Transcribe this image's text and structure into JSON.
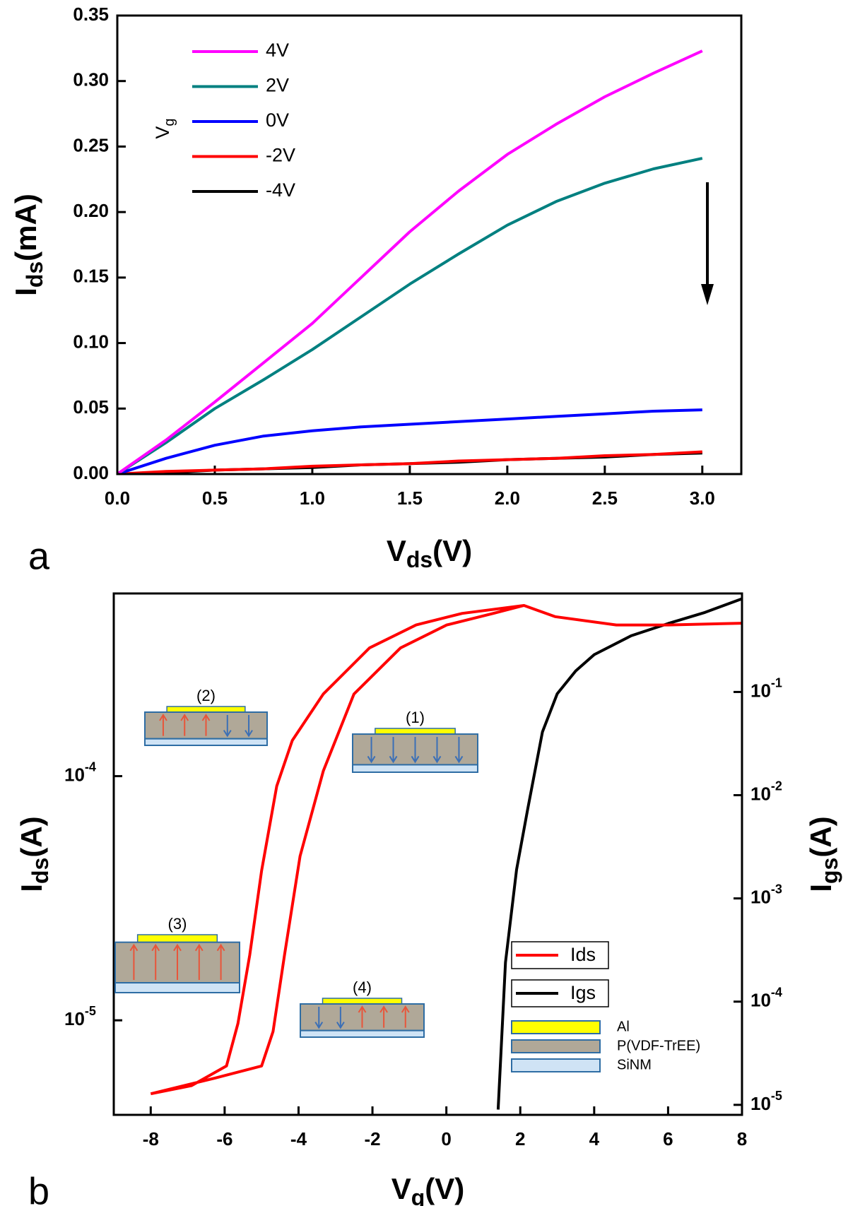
{
  "chart_data": [
    {
      "type": "line",
      "panel": "a",
      "x_label": [
        "V",
        "ds",
        "(V)"
      ],
      "y_label": [
        "I",
        "ds",
        "(mA)"
      ],
      "legend_title": [
        "V",
        "g"
      ],
      "x": [
        0,
        0.25,
        0.5,
        0.75,
        1,
        1.25,
        1.5,
        1.75,
        2,
        2.25,
        2.5,
        2.75,
        3
      ],
      "series": [
        {
          "name": "4V",
          "color": "#ff00ff",
          "values": [
            0,
            0.026,
            0.055,
            0.085,
            0.115,
            0.15,
            0.185,
            0.216,
            0.244,
            0.267,
            0.288,
            0.306,
            0.323
          ]
        },
        {
          "name": "2V",
          "color": "#008080",
          "values": [
            0,
            0.024,
            0.05,
            0.072,
            0.095,
            0.12,
            0.145,
            0.168,
            0.19,
            0.208,
            0.222,
            0.233,
            0.241
          ]
        },
        {
          "name": "0V",
          "color": "#0000ff",
          "values": [
            0,
            0.012,
            0.022,
            0.029,
            0.033,
            0.036,
            0.038,
            0.04,
            0.042,
            0.044,
            0.046,
            0.048,
            0.049
          ]
        },
        {
          "name": "-2V",
          "color": "#ff0000",
          "values": [
            0,
            0.002,
            0.003,
            0.004,
            0.006,
            0.007,
            0.008,
            0.01,
            0.011,
            0.012,
            0.014,
            0.015,
            0.017
          ]
        },
        {
          "name": "-4V",
          "color": "#000000",
          "values": [
            0,
            0.001,
            0.003,
            0.004,
            0.005,
            0.007,
            0.008,
            0.009,
            0.011,
            0.012,
            0.013,
            0.015,
            0.016
          ]
        }
      ],
      "xlim": [
        0,
        3.2
      ],
      "xticks": [
        {
          "value": 0,
          "label": "0.0"
        },
        {
          "value": 0.5,
          "label": "0.5"
        },
        {
          "value": 1,
          "label": "1.0"
        },
        {
          "value": 1.5,
          "label": "1.5"
        },
        {
          "value": 2,
          "label": "2.0"
        },
        {
          "value": 2.5,
          "label": "2.5"
        },
        {
          "value": 3,
          "label": "3.0"
        }
      ],
      "ylim": [
        0,
        0.35
      ],
      "yticks": [
        {
          "value": 0,
          "label": "0.00"
        },
        {
          "value": 0.05,
          "label": "0.05"
        },
        {
          "value": 0.1,
          "label": "0.10"
        },
        {
          "value": 0.15,
          "label": "0.15"
        },
        {
          "value": 0.2,
          "label": "0.20"
        },
        {
          "value": 0.25,
          "label": "0.25"
        },
        {
          "value": 0.3,
          "label": "0.30"
        },
        {
          "value": 0.35,
          "label": "0.35"
        }
      ]
    },
    {
      "type": "line",
      "panel": "b",
      "log_y": true,
      "x_label": [
        "V",
        "g",
        "(V)"
      ],
      "y_label": [
        "I",
        "ds",
        "(A)"
      ],
      "y2_label": [
        "I",
        "gs",
        "(A)"
      ],
      "series": [
        {
          "name": "Ids",
          "color": "#ff0000",
          "x": [
            -8,
            -6.9,
            -5.95,
            -5.64,
            -5.32,
            -5.0,
            -4.59,
            -4.17,
            -3.33,
            -2.08,
            -0.82,
            0.43,
            2.1,
            2.94,
            4.6,
            6,
            8,
            6,
            4.6,
            2.94,
            2.1,
            1.27,
            0.01,
            -1.24,
            -2.5,
            -3.33,
            -3.96,
            -4.38,
            -4.69,
            -5.0,
            -6.26,
            -8
          ],
          "values": [
            5e-06,
            5.4e-06,
            6.5e-06,
            9.7e-06,
            1.85e-05,
            4.1e-05,
            9.1e-05,
            0.00014,
            0.000217,
            0.000335,
            0.000416,
            0.000464,
            0.0005,
            0.00045,
            0.000416,
            0.000416,
            0.000423,
            0.000416,
            0.000416,
            0.00045,
            0.0005,
            0.000464,
            0.000416,
            0.000335,
            0.000217,
            0.000105,
            4.7e-05,
            1.85e-05,
            9e-06,
            6.5e-06,
            5.8e-06,
            5e-06
          ]
        },
        {
          "name": "Igs",
          "color": "#000000",
          "axis": "y2",
          "x": [
            1.4,
            1.6,
            1.9,
            2.2,
            2.6,
            3,
            3.5,
            4,
            5,
            6,
            7,
            8
          ],
          "values": [
            9e-06,
            0.00024,
            0.0019,
            0.0073,
            0.041,
            0.096,
            0.16,
            0.23,
            0.35,
            0.46,
            0.59,
            0.8
          ]
        }
      ],
      "xlim": [
        -9,
        8
      ],
      "xticks": [
        -8,
        -6,
        -4,
        -2,
        0,
        2,
        4,
        6,
        8
      ],
      "ylim": [
        4.1e-06,
        0.00056
      ],
      "yticks": [
        {
          "value": 0.0001,
          "label": "10-4"
        },
        {
          "value": 1e-05,
          "label": "10-5"
        }
      ],
      "y2lim": [
        8e-06,
        0.9
      ],
      "y2ticks": [
        {
          "value": 0.1,
          "label": "10-1"
        },
        {
          "value": 0.01,
          "label": "10-2"
        },
        {
          "value": 0.001,
          "label": "10-3"
        },
        {
          "value": 0.0001,
          "label": "10-4"
        },
        {
          "value": 1e-05,
          "label": "10-5"
        }
      ],
      "annotations": [
        "(1)",
        "(2)",
        "(3)",
        "(4)"
      ],
      "layer_legend": [
        {
          "name": "Al",
          "color": "#ffff00"
        },
        {
          "name": "P(VDF-TrEE)",
          "color": "#b0a898"
        },
        {
          "name": "SiNM",
          "color": "#cfe3f5"
        }
      ]
    }
  ]
}
